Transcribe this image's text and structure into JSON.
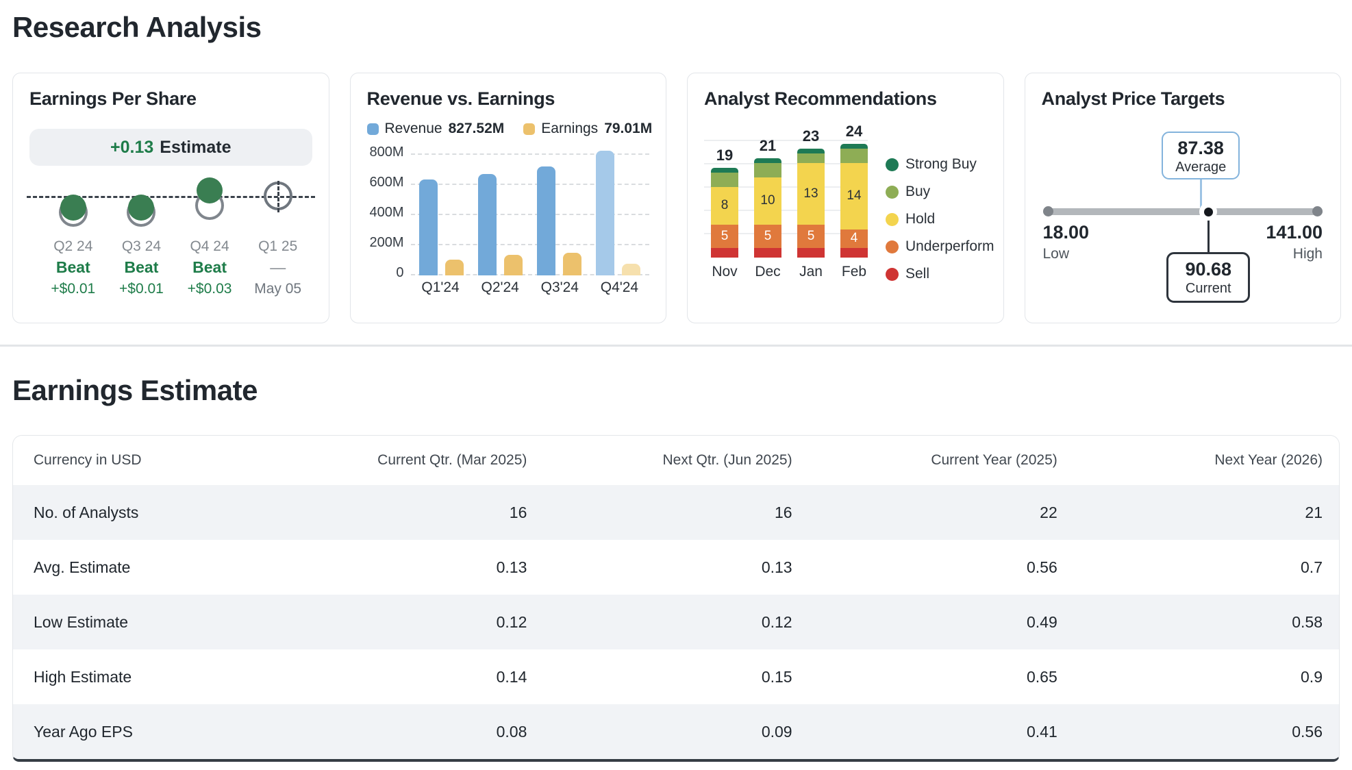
{
  "header": {
    "title": "Research Analysis"
  },
  "colors": {
    "green_text": "#1e7c49",
    "dot_green": "#3a7e52",
    "revenue_blue": "#72a9d9",
    "revenue_blue_latest": "#a5c9e9",
    "earnings_yellow": "#ecc16c",
    "earnings_yellow_latest": "#f6e0ad",
    "strong_buy": "#1e7a55",
    "buy": "#8ead55",
    "hold": "#f3d44e",
    "underperform": "#e0793c",
    "sell": "#cf3433",
    "avg_box_border": "#83b3dc",
    "current_box_border": "#2e343c"
  },
  "cards": {
    "eps": {
      "title": "Earnings Per Share",
      "pill": {
        "value": "+0.13",
        "label": "Estimate"
      }
    },
    "revenue": {
      "title": "Revenue vs. Earnings",
      "legend": [
        {
          "label": "Revenue",
          "value": "827.52M"
        },
        {
          "label": "Earnings",
          "value": "79.01M"
        }
      ]
    },
    "recommendations": {
      "title": "Analyst Recommendations"
    },
    "price_targets": {
      "title": "Analyst Price Targets",
      "average": "87.38",
      "average_label": "Average",
      "current": "90.68",
      "current_label": "Current",
      "low": "18.00",
      "low_label": "Low",
      "high": "141.00",
      "high_label": "High"
    }
  },
  "estimates": {
    "title": "Earnings Estimate",
    "table": {
      "columns": [
        "Currency in USD",
        "Current Qtr. (Mar 2025)",
        "Next Qtr. (Jun 2025)",
        "Current Year (2025)",
        "Next Year (2026)"
      ],
      "rows": [
        {
          "label": "No. of Analysts",
          "values": [
            "16",
            "16",
            "22",
            "21"
          ]
        },
        {
          "label": "Avg. Estimate",
          "values": [
            "0.13",
            "0.13",
            "0.56",
            "0.7"
          ]
        },
        {
          "label": "Low Estimate",
          "values": [
            "0.12",
            "0.12",
            "0.49",
            "0.58"
          ]
        },
        {
          "label": "High Estimate",
          "values": [
            "0.14",
            "0.15",
            "0.65",
            "0.9"
          ]
        },
        {
          "label": "Year Ago EPS",
          "values": [
            "0.08",
            "0.09",
            "0.41",
            "0.56"
          ]
        }
      ]
    }
  },
  "chart_data": [
    {
      "id": "eps_surprise",
      "type": "scatter",
      "title": "Earnings Per Share",
      "estimate_pill": "+0.13 Estimate",
      "points": [
        {
          "x": "Q2 24",
          "result": "Beat",
          "surprise": "+$0.01",
          "marker": "beat"
        },
        {
          "x": "Q3 24",
          "result": "Beat",
          "surprise": "+$0.01",
          "marker": "beat"
        },
        {
          "x": "Q4 24",
          "result": "Beat",
          "surprise": "+$0.03",
          "marker": "beat-strong"
        },
        {
          "x": "Q1 25",
          "result": "—",
          "surprise": "May 05",
          "marker": "pending"
        }
      ]
    },
    {
      "id": "revenue_vs_earnings",
      "type": "bar",
      "title": "Revenue vs. Earnings",
      "categories": [
        "Q1'24",
        "Q2'24",
        "Q3'24",
        "Q4'24"
      ],
      "series": [
        {
          "name": "Revenue",
          "unit": "M",
          "latest_display": "827.52M",
          "values": [
            635,
            675,
            725,
            827.52
          ]
        },
        {
          "name": "Earnings",
          "unit": "M",
          "latest_display": "79.01M",
          "values": [
            105,
            135,
            148,
            79.01
          ]
        }
      ],
      "ylim": [
        0,
        800
      ],
      "yticks": [
        800,
        600,
        400,
        200,
        0
      ],
      "ytick_labels": [
        "800M",
        "600M",
        "400M",
        "200M",
        "0"
      ],
      "grid": "dashed"
    },
    {
      "id": "analyst_recommendations",
      "type": "stacked-bar",
      "title": "Analyst Recommendations",
      "categories": [
        "Nov",
        "Dec",
        "Jan",
        "Feb"
      ],
      "totals": [
        19,
        21,
        23,
        24
      ],
      "series": [
        {
          "name": "Sell",
          "colorKey": "sell",
          "show_labels": false,
          "values": [
            2,
            2,
            2,
            2
          ]
        },
        {
          "name": "Underperform",
          "colorKey": "underperform",
          "show_labels": true,
          "label_color": "#ffffff",
          "values": [
            5,
            5,
            5,
            4
          ]
        },
        {
          "name": "Hold",
          "colorKey": "hold",
          "show_labels": true,
          "label_color": "#2b3138",
          "values": [
            8,
            10,
            13,
            14
          ]
        },
        {
          "name": "Buy",
          "colorKey": "buy",
          "show_labels": false,
          "values": [
            3,
            3,
            2,
            3
          ]
        },
        {
          "name": "Strong Buy",
          "colorKey": "strong_buy",
          "show_labels": false,
          "values": [
            1,
            1,
            1,
            1
          ]
        }
      ],
      "legend": [
        "Strong Buy",
        "Buy",
        "Hold",
        "Underperform",
        "Sell"
      ],
      "legend_colorKeys": [
        "strong_buy",
        "buy",
        "hold",
        "underperform",
        "sell"
      ],
      "legend_position": "right"
    },
    {
      "id": "analyst_price_targets",
      "type": "range",
      "title": "Analyst Price Targets",
      "low": 18.0,
      "high": 141.0,
      "average": 87.38,
      "current": 90.68
    }
  ]
}
